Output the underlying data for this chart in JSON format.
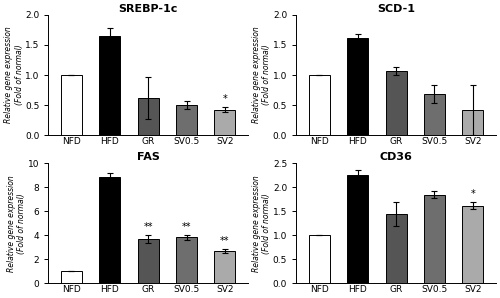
{
  "subplots": [
    {
      "title": "SREBP-1c",
      "categories": [
        "NFD",
        "HFD",
        "GR",
        "SV0.5",
        "SV2"
      ],
      "values": [
        1.0,
        1.65,
        0.62,
        0.5,
        0.42
      ],
      "errors": [
        0.0,
        0.13,
        0.35,
        0.07,
        0.04
      ],
      "bar_colors": [
        "white",
        "black",
        "#555555",
        "#6e6e6e",
        "#aaaaaa"
      ],
      "ylim": [
        0,
        2
      ],
      "yticks": [
        0,
        0.5,
        1.0,
        1.5,
        2.0
      ],
      "ylabel": "Relative gene expression\n(Fold of normal)",
      "asterisks": [
        "",
        "",
        "",
        "",
        "*"
      ]
    },
    {
      "title": "SCD-1",
      "categories": [
        "NFD",
        "HFD",
        "GR",
        "SV0.5",
        "SV2"
      ],
      "values": [
        1.0,
        1.62,
        1.07,
        0.68,
        0.42
      ],
      "errors": [
        0.0,
        0.06,
        0.07,
        0.15,
        0.42
      ],
      "bar_colors": [
        "white",
        "black",
        "#555555",
        "#6e6e6e",
        "#aaaaaa"
      ],
      "ylim": [
        0,
        2
      ],
      "yticks": [
        0,
        0.5,
        1.0,
        1.5,
        2.0
      ],
      "ylabel": "Relative gene expression\n(Fold of normal)",
      "asterisks": [
        "",
        "",
        "",
        "",
        ""
      ]
    },
    {
      "title": "FAS",
      "categories": [
        "NFD",
        "HFD",
        "GR",
        "SV0.5",
        "SV2"
      ],
      "values": [
        1.0,
        8.85,
        3.7,
        3.85,
        2.7
      ],
      "errors": [
        0.0,
        0.3,
        0.35,
        0.2,
        0.15
      ],
      "bar_colors": [
        "white",
        "black",
        "#555555",
        "#6e6e6e",
        "#aaaaaa"
      ],
      "ylim": [
        0,
        10
      ],
      "yticks": [
        0,
        2,
        4,
        6,
        8,
        10
      ],
      "ylabel": "Relative gene expression\n(Fold of normal)",
      "asterisks": [
        "",
        "",
        "**",
        "**",
        "**"
      ]
    },
    {
      "title": "CD36",
      "categories": [
        "NFD",
        "HFD",
        "GR",
        "SV0.5",
        "SV2"
      ],
      "values": [
        1.0,
        2.25,
        1.45,
        1.85,
        1.62
      ],
      "errors": [
        0.0,
        0.1,
        0.25,
        0.08,
        0.07
      ],
      "bar_colors": [
        "white",
        "black",
        "#555555",
        "#6e6e6e",
        "#aaaaaa"
      ],
      "ylim": [
        0,
        2.5
      ],
      "yticks": [
        0,
        0.5,
        1.0,
        1.5,
        2.0,
        2.5
      ],
      "ylabel": "Relative gene expression\n(Fold of normal)",
      "asterisks": [
        "",
        "",
        "",
        "",
        "*"
      ]
    }
  ],
  "edge_color": "black",
  "error_color": "black",
  "bar_width": 0.55,
  "title_fontsize": 8,
  "label_fontsize": 5.5,
  "tick_fontsize": 6.5,
  "asterisk_fontsize": 7
}
